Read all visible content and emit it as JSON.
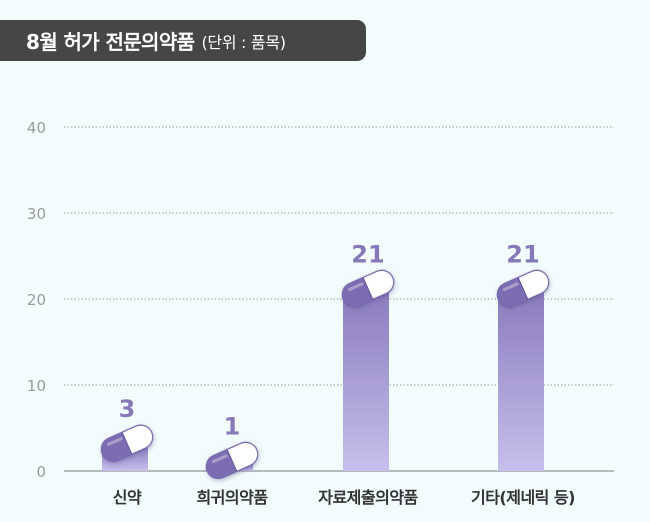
{
  "title": "8월 허가 전문의약품",
  "unit": "(단위 : 품목)",
  "colors": {
    "bar_top": "#8a7cbd",
    "bar_bottom": "#c7bfec",
    "value_label": "#8679b8",
    "capsule_dark": "#7b6cb2",
    "capsule_light": "#ffffff",
    "grid": "#9a9a9a",
    "tick": "#9a9a9a",
    "category": "#333333",
    "banner": "#464646"
  },
  "chart_data": {
    "type": "bar",
    "title": "8월 허가 전문의약품",
    "ylabel": "",
    "xlabel": "",
    "categories": [
      "신약",
      "희귀의약품",
      "자료제출의약품",
      "기타(제네릭 등)"
    ],
    "values": [
      3,
      1,
      21,
      21
    ],
    "ylim": [
      0,
      40
    ],
    "yticks": [
      0,
      10,
      20,
      30,
      40
    ],
    "grid": true,
    "data_labels": true
  }
}
